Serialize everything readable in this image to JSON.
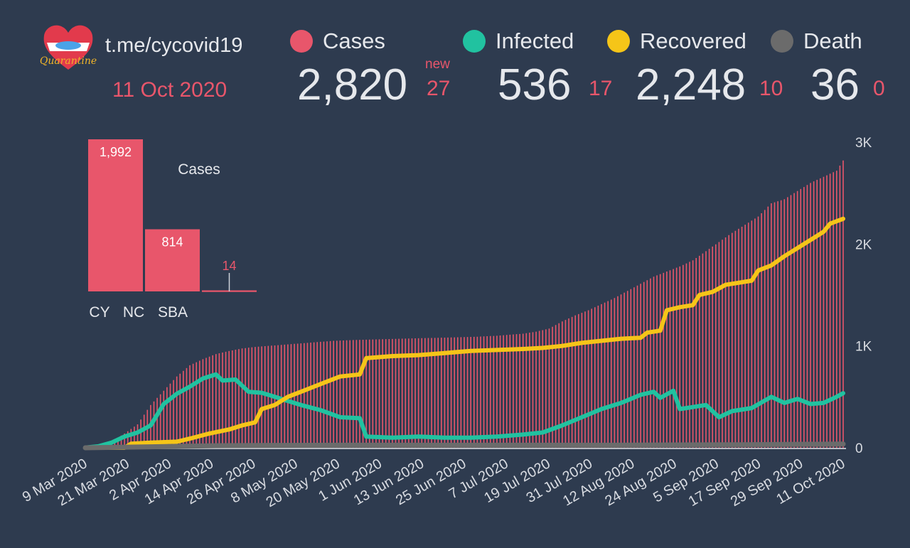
{
  "header": {
    "channel": "t.me/cycovid19",
    "date": "11 Oct 2020",
    "new_label": "new",
    "logo_text": "Quarantine"
  },
  "stats": [
    {
      "key": "cases",
      "label": "Cases",
      "value": "2,820",
      "delta": "27",
      "color": "#e8566b"
    },
    {
      "key": "infected",
      "label": "Infected",
      "value": "536",
      "delta": "17",
      "color": "#21c2a0"
    },
    {
      "key": "recovered",
      "label": "Recovered",
      "value": "2,248",
      "delta": "10",
      "color": "#f5c518"
    },
    {
      "key": "death",
      "label": "Death",
      "value": "36",
      "delta": "0",
      "color": "#6b6b6b"
    }
  ],
  "chart_data": [
    {
      "type": "bar",
      "title": "Cases",
      "categories": [
        "CY",
        "NC",
        "SBA"
      ],
      "values": [
        1992,
        814,
        14
      ],
      "value_labels": [
        "1,992",
        "814",
        "14"
      ],
      "color": "#e8566b"
    },
    {
      "type": "line",
      "x_tick_labels": [
        "9 Mar 2020",
        "21 Mar 2020",
        "2 Apr 2020",
        "14 Apr 2020",
        "26 Apr 2020",
        "8 May 2020",
        "20 May 2020",
        "1 Jun 2020",
        "13 Jun 2020",
        "25 Jun 2020",
        "7 Jul 2020",
        "19 Jul 2020",
        "31 Jul 2020",
        "12 Aug 2020",
        "24 Aug 2020",
        "5 Sep 2020",
        "17 Sep 2020",
        "29 Sep 2020",
        "11 Oct 2020"
      ],
      "y_tick_labels": [
        "0",
        "1K",
        "2K",
        "3K"
      ],
      "ylim": [
        0,
        3000
      ],
      "bars": {
        "name": "Cases",
        "color": "#e8566b",
        "points": [
          [
            0,
            2
          ],
          [
            4,
            15
          ],
          [
            8,
            60
          ],
          [
            12,
            140
          ],
          [
            16,
            230
          ],
          [
            20,
            420
          ],
          [
            24,
            560
          ],
          [
            28,
            700
          ],
          [
            32,
            810
          ],
          [
            36,
            870
          ],
          [
            40,
            920
          ],
          [
            44,
            950
          ],
          [
            48,
            975
          ],
          [
            52,
            990
          ],
          [
            56,
            1000
          ],
          [
            60,
            1010
          ],
          [
            64,
            1020
          ],
          [
            68,
            1030
          ],
          [
            72,
            1040
          ],
          [
            76,
            1050
          ],
          [
            80,
            1055
          ],
          [
            84,
            1060
          ],
          [
            90,
            1065
          ],
          [
            96,
            1070
          ],
          [
            102,
            1075
          ],
          [
            108,
            1080
          ],
          [
            114,
            1085
          ],
          [
            120,
            1090
          ],
          [
            126,
            1100
          ],
          [
            130,
            1110
          ],
          [
            134,
            1120
          ],
          [
            138,
            1140
          ],
          [
            142,
            1170
          ],
          [
            146,
            1240
          ],
          [
            150,
            1300
          ],
          [
            154,
            1350
          ],
          [
            158,
            1410
          ],
          [
            162,
            1470
          ],
          [
            166,
            1540
          ],
          [
            170,
            1610
          ],
          [
            174,
            1680
          ],
          [
            178,
            1730
          ],
          [
            182,
            1780
          ],
          [
            186,
            1840
          ],
          [
            190,
            1930
          ],
          [
            194,
            2020
          ],
          [
            198,
            2110
          ],
          [
            202,
            2190
          ],
          [
            206,
            2270
          ],
          [
            210,
            2400
          ],
          [
            214,
            2440
          ],
          [
            218,
            2520
          ],
          [
            222,
            2600
          ],
          [
            226,
            2660
          ],
          [
            230,
            2720
          ],
          [
            232,
            2820
          ]
        ]
      },
      "series": [
        {
          "name": "Infected",
          "color": "#21c2a0",
          "points": [
            [
              0,
              2
            ],
            [
              4,
              15
            ],
            [
              8,
              50
            ],
            [
              12,
              110
            ],
            [
              16,
              150
            ],
            [
              20,
              220
            ],
            [
              24,
              430
            ],
            [
              28,
              530
            ],
            [
              32,
              600
            ],
            [
              36,
              680
            ],
            [
              40,
              720
            ],
            [
              42,
              660
            ],
            [
              46,
              670
            ],
            [
              50,
              550
            ],
            [
              54,
              540
            ],
            [
              58,
              500
            ],
            [
              62,
              460
            ],
            [
              66,
              420
            ],
            [
              72,
              370
            ],
            [
              78,
              300
            ],
            [
              84,
              290
            ],
            [
              86,
              110
            ],
            [
              94,
              100
            ],
            [
              102,
              110
            ],
            [
              110,
              100
            ],
            [
              118,
              100
            ],
            [
              126,
              110
            ],
            [
              134,
              130
            ],
            [
              140,
              150
            ],
            [
              146,
              220
            ],
            [
              152,
              300
            ],
            [
              158,
              380
            ],
            [
              164,
              440
            ],
            [
              170,
              520
            ],
            [
              174,
              550
            ],
            [
              176,
              490
            ],
            [
              180,
              560
            ],
            [
              182,
              380
            ],
            [
              186,
              400
            ],
            [
              190,
              420
            ],
            [
              194,
              300
            ],
            [
              198,
              360
            ],
            [
              204,
              390
            ],
            [
              210,
              500
            ],
            [
              214,
              440
            ],
            [
              218,
              480
            ],
            [
              222,
              430
            ],
            [
              226,
              440
            ],
            [
              230,
              500
            ],
            [
              232,
              536
            ]
          ]
        },
        {
          "name": "Recovered",
          "color": "#f5c518",
          "points": [
            [
              0,
              0
            ],
            [
              12,
              0
            ],
            [
              14,
              40
            ],
            [
              20,
              50
            ],
            [
              28,
              60
            ],
            [
              32,
              90
            ],
            [
              38,
              140
            ],
            [
              44,
              180
            ],
            [
              48,
              220
            ],
            [
              52,
              250
            ],
            [
              54,
              380
            ],
            [
              58,
              420
            ],
            [
              62,
              500
            ],
            [
              66,
              550
            ],
            [
              70,
              600
            ],
            [
              74,
              650
            ],
            [
              78,
              700
            ],
            [
              84,
              720
            ],
            [
              86,
              880
            ],
            [
              94,
              900
            ],
            [
              102,
              910
            ],
            [
              110,
              930
            ],
            [
              118,
              950
            ],
            [
              126,
              960
            ],
            [
              134,
              970
            ],
            [
              140,
              980
            ],
            [
              146,
              1000
            ],
            [
              152,
              1030
            ],
            [
              158,
              1050
            ],
            [
              164,
              1070
            ],
            [
              170,
              1080
            ],
            [
              172,
              1130
            ],
            [
              176,
              1150
            ],
            [
              178,
              1350
            ],
            [
              182,
              1380
            ],
            [
              186,
              1400
            ],
            [
              188,
              1500
            ],
            [
              192,
              1530
            ],
            [
              196,
              1600
            ],
            [
              200,
              1620
            ],
            [
              204,
              1640
            ],
            [
              206,
              1740
            ],
            [
              210,
              1790
            ],
            [
              214,
              1880
            ],
            [
              218,
              1960
            ],
            [
              222,
              2040
            ],
            [
              226,
              2120
            ],
            [
              228,
              2200
            ],
            [
              232,
              2248
            ]
          ]
        },
        {
          "name": "Death",
          "color": "#6b6b6b",
          "points": [
            [
              0,
              0
            ],
            [
              20,
              10
            ],
            [
              40,
              20
            ],
            [
              60,
              24
            ],
            [
              80,
              25
            ],
            [
              120,
              25
            ],
            [
              160,
              25
            ],
            [
              200,
              30
            ],
            [
              232,
              36
            ]
          ]
        }
      ]
    }
  ]
}
